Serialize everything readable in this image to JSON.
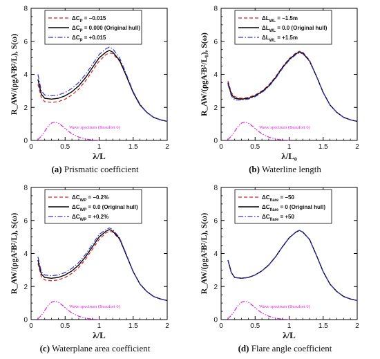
{
  "colors": {
    "red": "#d42020",
    "black": "#000000",
    "blue": "#3030d0",
    "magenta": "#e020e0"
  },
  "chart_data": [
    {
      "type": "line",
      "caption_id": "(a)",
      "caption_text": "Prismatic coefficient",
      "ylabel": "R_AW/(ρgA²B²/L), S(ω)",
      "xlabel": "λ/L",
      "xlim": [
        0,
        2
      ],
      "ylim": [
        0,
        8
      ],
      "xticks": [
        "0",
        "0.5",
        "1",
        "1.5",
        "2"
      ],
      "yticks": [
        "0",
        "2",
        "4",
        "6",
        "8"
      ],
      "legend_position": "top",
      "annotation": "Wave spectrum (Beaufort 6)",
      "legend": [
        "ΔC_P = −0.015",
        "ΔC_P = 0.000 (Original hull)",
        "ΔC_P = +0.015"
      ],
      "series": [
        {
          "name": "ΔC_P = −0.015",
          "style": "dashed",
          "color": "red",
          "x": [
            0.1,
            0.15,
            0.2,
            0.3,
            0.4,
            0.5,
            0.6,
            0.7,
            0.8,
            0.9,
            1.0,
            1.1,
            1.15,
            1.2,
            1.3,
            1.4,
            1.5,
            1.6,
            1.7,
            1.8,
            1.9,
            2.0
          ],
          "y": [
            3.4,
            2.6,
            2.35,
            2.3,
            2.35,
            2.5,
            2.75,
            3.1,
            3.6,
            4.2,
            4.8,
            5.2,
            5.3,
            5.25,
            4.8,
            3.9,
            2.9,
            2.15,
            1.7,
            1.4,
            1.25,
            1.15
          ]
        },
        {
          "name": "ΔC_P = 0.000 (Original hull)",
          "style": "solid",
          "color": "black",
          "x": [
            0.1,
            0.15,
            0.2,
            0.3,
            0.4,
            0.5,
            0.6,
            0.7,
            0.8,
            0.9,
            1.0,
            1.1,
            1.15,
            1.2,
            1.3,
            1.4,
            1.5,
            1.6,
            1.7,
            1.8,
            1.9,
            2.0
          ],
          "y": [
            3.7,
            2.8,
            2.55,
            2.5,
            2.55,
            2.7,
            2.95,
            3.3,
            3.8,
            4.4,
            5.0,
            5.35,
            5.45,
            5.35,
            4.85,
            3.9,
            2.9,
            2.15,
            1.7,
            1.4,
            1.25,
            1.15
          ]
        },
        {
          "name": "ΔC_P = +0.015",
          "style": "dashdot",
          "color": "blue",
          "x": [
            0.1,
            0.15,
            0.2,
            0.3,
            0.4,
            0.5,
            0.6,
            0.7,
            0.8,
            0.9,
            1.0,
            1.1,
            1.15,
            1.2,
            1.3,
            1.4,
            1.5,
            1.6,
            1.7,
            1.8,
            1.9,
            2.0
          ],
          "y": [
            4.0,
            3.0,
            2.75,
            2.7,
            2.75,
            2.9,
            3.15,
            3.5,
            4.0,
            4.6,
            5.2,
            5.55,
            5.65,
            5.55,
            5.0,
            4.0,
            2.95,
            2.2,
            1.7,
            1.4,
            1.25,
            1.15
          ]
        },
        {
          "name": "Wave spectrum (Beaufort 6)",
          "style": "dashdotdot",
          "color": "magenta",
          "x": [
            0.1,
            0.15,
            0.2,
            0.25,
            0.3,
            0.35,
            0.4,
            0.45,
            0.5,
            0.55,
            0.6,
            0.7,
            0.8,
            0.9,
            1.0
          ],
          "y": [
            0.05,
            0.25,
            0.55,
            0.85,
            1.05,
            1.12,
            1.05,
            0.9,
            0.72,
            0.55,
            0.4,
            0.2,
            0.09,
            0.03,
            0.0
          ]
        }
      ]
    },
    {
      "type": "line",
      "caption_id": "(b)",
      "caption_text": "Waterline length",
      "ylabel": "R_AW/(ρgA²B²/L₀), S(ω)",
      "xlabel": "λ/L₀",
      "xlim": [
        0,
        2
      ],
      "ylim": [
        0,
        8
      ],
      "xticks": [
        "0",
        "0.5",
        "1",
        "1.5",
        "2"
      ],
      "yticks": [
        "0",
        "2",
        "4",
        "6",
        "8"
      ],
      "legend_position": "top",
      "annotation": "Wave spectrum (Beaufort 6)",
      "legend": [
        "ΔL_WL = −1.5m",
        "ΔL_WL = 0.0 (Original hull)",
        "ΔL_WL = +1.5m"
      ],
      "series": [
        {
          "name": "ΔL_WL = −1.5m",
          "style": "dashed",
          "color": "red",
          "x": [
            0.1,
            0.15,
            0.2,
            0.3,
            0.4,
            0.5,
            0.6,
            0.7,
            0.8,
            0.9,
            1.0,
            1.1,
            1.15,
            1.2,
            1.3,
            1.4,
            1.5,
            1.6,
            1.7,
            1.8,
            1.9,
            2.0
          ],
          "y": [
            3.6,
            2.9,
            2.65,
            2.55,
            2.6,
            2.75,
            3.0,
            3.35,
            3.85,
            4.45,
            4.95,
            5.3,
            5.4,
            5.35,
            4.85,
            3.9,
            2.9,
            2.15,
            1.7,
            1.4,
            1.25,
            1.15
          ]
        },
        {
          "name": "ΔL_WL = 0.0 (Original hull)",
          "style": "solid",
          "color": "black",
          "x": [
            0.1,
            0.15,
            0.2,
            0.3,
            0.4,
            0.5,
            0.6,
            0.7,
            0.8,
            0.9,
            1.0,
            1.1,
            1.15,
            1.2,
            1.3,
            1.4,
            1.5,
            1.6,
            1.7,
            1.8,
            1.9,
            2.0
          ],
          "y": [
            3.5,
            2.8,
            2.55,
            2.5,
            2.55,
            2.7,
            2.95,
            3.3,
            3.8,
            4.4,
            4.9,
            5.25,
            5.35,
            5.3,
            4.8,
            3.9,
            2.9,
            2.15,
            1.7,
            1.4,
            1.25,
            1.15
          ]
        },
        {
          "name": "ΔL_WL = +1.5m",
          "style": "dashdot",
          "color": "blue",
          "x": [
            0.1,
            0.15,
            0.2,
            0.3,
            0.4,
            0.5,
            0.6,
            0.7,
            0.8,
            0.9,
            1.0,
            1.1,
            1.15,
            1.2,
            1.3,
            1.4,
            1.5,
            1.6,
            1.7,
            1.8,
            1.9,
            2.0
          ],
          "y": [
            3.4,
            2.7,
            2.45,
            2.45,
            2.5,
            2.65,
            2.9,
            3.25,
            3.75,
            4.35,
            4.85,
            5.2,
            5.3,
            5.25,
            4.8,
            3.9,
            2.9,
            2.15,
            1.7,
            1.4,
            1.25,
            1.15
          ]
        },
        {
          "name": "Wave spectrum (Beaufort 6)",
          "style": "dashdotdot",
          "color": "magenta",
          "x": [
            0.1,
            0.15,
            0.2,
            0.25,
            0.3,
            0.35,
            0.4,
            0.45,
            0.5,
            0.55,
            0.6,
            0.7,
            0.8,
            0.9,
            1.0
          ],
          "y": [
            0.05,
            0.25,
            0.55,
            0.85,
            1.05,
            1.12,
            1.05,
            0.9,
            0.72,
            0.55,
            0.4,
            0.2,
            0.09,
            0.03,
            0.0
          ]
        }
      ]
    },
    {
      "type": "line",
      "caption_id": "(c)",
      "caption_text": "Waterplane area coefficient",
      "ylabel": "R_AW/(ρgA²B²/L), S(ω)",
      "xlabel": "λ/L",
      "xlim": [
        0,
        2
      ],
      "ylim": [
        0,
        8
      ],
      "xticks": [
        "0",
        "0.5",
        "1",
        "1.5",
        "2"
      ],
      "yticks": [
        "0",
        "2",
        "4",
        "6",
        "8"
      ],
      "legend_position": "top",
      "annotation": "Wave spectrum (Beaufort 6)",
      "legend": [
        "ΔC_WP = −0.2%",
        "ΔC_WP = 0.0 (Original hull)",
        "ΔC_WP = +0.2%"
      ],
      "series": [
        {
          "name": "ΔC_WP = −0.2%",
          "style": "dashed",
          "color": "red",
          "x": [
            0.1,
            0.15,
            0.2,
            0.3,
            0.4,
            0.5,
            0.6,
            0.7,
            0.8,
            0.9,
            1.0,
            1.1,
            1.15,
            1.2,
            1.3,
            1.4,
            1.5,
            1.6,
            1.7,
            1.8,
            1.9,
            2.0
          ],
          "y": [
            3.4,
            2.6,
            2.4,
            2.35,
            2.4,
            2.55,
            2.8,
            3.15,
            3.65,
            4.25,
            4.85,
            5.25,
            5.35,
            5.3,
            4.85,
            3.9,
            2.9,
            2.15,
            1.7,
            1.4,
            1.25,
            1.15
          ]
        },
        {
          "name": "ΔC_WP = 0.0 (Original hull)",
          "style": "solid",
          "color": "black",
          "x": [
            0.1,
            0.15,
            0.2,
            0.3,
            0.4,
            0.5,
            0.6,
            0.7,
            0.8,
            0.9,
            1.0,
            1.1,
            1.15,
            1.2,
            1.3,
            1.4,
            1.5,
            1.6,
            1.7,
            1.8,
            1.9,
            2.0
          ],
          "y": [
            3.6,
            2.75,
            2.55,
            2.5,
            2.55,
            2.7,
            2.95,
            3.3,
            3.8,
            4.4,
            5.0,
            5.35,
            5.45,
            5.35,
            4.9,
            3.9,
            2.9,
            2.15,
            1.7,
            1.4,
            1.25,
            1.15
          ]
        },
        {
          "name": "ΔC_WP = +0.2%",
          "style": "dashdot",
          "color": "blue",
          "x": [
            0.1,
            0.15,
            0.2,
            0.3,
            0.4,
            0.5,
            0.6,
            0.7,
            0.8,
            0.9,
            1.0,
            1.1,
            1.15,
            1.2,
            1.3,
            1.4,
            1.5,
            1.6,
            1.7,
            1.8,
            1.9,
            2.0
          ],
          "y": [
            3.8,
            2.9,
            2.7,
            2.65,
            2.7,
            2.85,
            3.1,
            3.45,
            3.95,
            4.55,
            5.15,
            5.45,
            5.55,
            5.45,
            4.95,
            3.95,
            2.9,
            2.15,
            1.7,
            1.4,
            1.25,
            1.15
          ]
        },
        {
          "name": "Wave spectrum (Beaufort 6)",
          "style": "dashdotdot",
          "color": "magenta",
          "x": [
            0.1,
            0.15,
            0.2,
            0.25,
            0.3,
            0.35,
            0.4,
            0.45,
            0.5,
            0.55,
            0.6,
            0.7,
            0.8,
            0.9,
            1.0
          ],
          "y": [
            0.05,
            0.25,
            0.55,
            0.85,
            1.05,
            1.12,
            1.05,
            0.9,
            0.72,
            0.55,
            0.4,
            0.2,
            0.09,
            0.03,
            0.0
          ]
        }
      ]
    },
    {
      "type": "line",
      "caption_id": "(d)",
      "caption_text": "Flare angle coefficient",
      "ylabel": "R_AW/(ρgA²B²/L), S(ω)",
      "xlabel": "λ/L",
      "xlim": [
        0,
        2
      ],
      "ylim": [
        0,
        8
      ],
      "xticks": [
        "0",
        "0.5",
        "1",
        "1.5",
        "2"
      ],
      "yticks": [
        "0",
        "2",
        "4",
        "6",
        "8"
      ],
      "legend_position": "top",
      "annotation": "Wave spectrum (Beaufort 6)",
      "legend": [
        "ΔC_flare = −50",
        "ΔC_flare = 0 (Original hull)",
        "ΔC_flare = +50"
      ],
      "series": [
        {
          "name": "ΔC_flare = −50",
          "style": "dashed",
          "color": "red",
          "x": [
            0.1,
            0.15,
            0.2,
            0.3,
            0.4,
            0.5,
            0.6,
            0.7,
            0.8,
            0.9,
            1.0,
            1.1,
            1.15,
            1.2,
            1.3,
            1.4,
            1.5,
            1.6,
            1.7,
            1.8,
            1.9,
            2.0
          ],
          "y": [
            3.6,
            2.85,
            2.55,
            2.5,
            2.55,
            2.7,
            2.95,
            3.3,
            3.8,
            4.4,
            4.95,
            5.3,
            5.4,
            5.3,
            4.85,
            3.9,
            2.9,
            2.15,
            1.7,
            1.4,
            1.25,
            1.15
          ]
        },
        {
          "name": "ΔC_flare = 0 (Original hull)",
          "style": "solid",
          "color": "black",
          "x": [
            0.1,
            0.15,
            0.2,
            0.3,
            0.4,
            0.5,
            0.6,
            0.7,
            0.8,
            0.9,
            1.0,
            1.1,
            1.15,
            1.2,
            1.3,
            1.4,
            1.5,
            1.6,
            1.7,
            1.8,
            1.9,
            2.0
          ],
          "y": [
            3.6,
            2.85,
            2.55,
            2.5,
            2.55,
            2.7,
            2.95,
            3.3,
            3.8,
            4.4,
            4.95,
            5.3,
            5.4,
            5.3,
            4.85,
            3.9,
            2.9,
            2.15,
            1.7,
            1.4,
            1.25,
            1.15
          ]
        },
        {
          "name": "ΔC_flare = +50",
          "style": "dashdot",
          "color": "blue",
          "x": [
            0.1,
            0.15,
            0.2,
            0.3,
            0.4,
            0.5,
            0.6,
            0.7,
            0.8,
            0.9,
            1.0,
            1.1,
            1.15,
            1.2,
            1.3,
            1.4,
            1.5,
            1.6,
            1.7,
            1.8,
            1.9,
            2.0
          ],
          "y": [
            3.6,
            2.85,
            2.55,
            2.5,
            2.55,
            2.7,
            2.95,
            3.3,
            3.8,
            4.4,
            4.95,
            5.3,
            5.4,
            5.3,
            4.85,
            3.9,
            2.9,
            2.15,
            1.7,
            1.4,
            1.25,
            1.15
          ]
        },
        {
          "name": "Wave spectrum (Beaufort 6)",
          "style": "dashdotdot",
          "color": "magenta",
          "x": [
            0.1,
            0.15,
            0.2,
            0.25,
            0.3,
            0.35,
            0.4,
            0.45,
            0.5,
            0.55,
            0.6,
            0.7,
            0.8,
            0.9,
            1.0
          ],
          "y": [
            0.05,
            0.25,
            0.55,
            0.85,
            1.05,
            1.12,
            1.05,
            0.9,
            0.72,
            0.55,
            0.4,
            0.2,
            0.09,
            0.03,
            0.0
          ]
        }
      ]
    }
  ]
}
